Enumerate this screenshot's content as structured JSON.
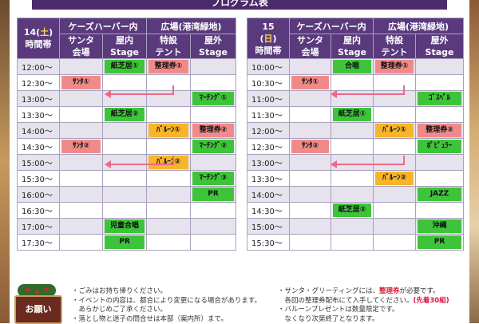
{
  "page": {
    "title": "プログラム表"
  },
  "headers": {
    "group_cases": "ケーズハーバー内",
    "group_plaza": "広場(港湾緑地)",
    "cols": [
      "サンタ会場",
      "屋内Stage",
      "特設テント",
      "屋外Stage"
    ],
    "col_lines": [
      [
        "サンタ",
        "会場"
      ],
      [
        "屋内",
        "Stage"
      ],
      [
        "特設",
        "テント"
      ],
      [
        "屋外",
        "Stage"
      ]
    ]
  },
  "day14": {
    "day_num": "14",
    "day_open": "(",
    "day_wd": "土",
    "day_close": ")",
    "label": "時間帯",
    "times": [
      "12:00～",
      "12:30～",
      "13:00～",
      "13:30～",
      "14:00～",
      "14:30～",
      "15:00～",
      "15:30～",
      "16:00～",
      "16:30～",
      "17:00～",
      "17:30～"
    ],
    "events": {
      "r0c1": "紙芝居①",
      "r0c2": "整理券①",
      "r1c0": "ｻﾝﾀ①",
      "r2c3": "ﾏｰﾁﾝｸﾞ①",
      "r3c1": "紙芝居②",
      "r4c2": "ﾊﾞﾙｰﾝ①",
      "r4c3": "整理券②",
      "r5c0": "ｻﾝﾀ②",
      "r5c3": "ﾏｰﾁﾝｸﾞ②",
      "r6c2": "ﾊﾞﾙｰﾝ②",
      "r7c3": "ﾏｰﾁﾝｸﾞ③",
      "r8c3": "PR",
      "r10c1": "児童合唱",
      "r11c1": "PR"
    }
  },
  "day15": {
    "day_num": "15",
    "day_open": "(",
    "day_wd": "日",
    "day_close": ")",
    "label": "時間帯",
    "times": [
      "10:00～",
      "10:30～",
      "11:00～",
      "11:30～",
      "12:00～",
      "12:30～",
      "13:00～",
      "13:30～",
      "14:00～",
      "14:30～",
      "15:00～",
      "15:30～"
    ],
    "events": {
      "r0c1": "合唱",
      "r0c2": "整理券①",
      "r1c0": "ｻﾝﾀ①",
      "r2c3": "ｺﾞｽﾍﾟﾙ",
      "r3c1": "紙芝居①",
      "r4c2": "ﾊﾞﾙｰﾝ①",
      "r4c3": "整理券②",
      "r5c0": "ｻﾝﾀ②",
      "r5c3": "ﾎﾟﾋﾟｭﾗｰ",
      "r7c2": "ﾊﾞﾙｰﾝ②",
      "r8c3": "JAZZ",
      "r9c1": "紙芝居②",
      "r10c3": "沖縄",
      "r11c3": "PR"
    }
  },
  "colors": {
    "header_purple": "#5a3a7c",
    "green": "#3ec43a",
    "red": "#f08a8a",
    "orange": "#f7b52c",
    "warn": "#d61a3c"
  },
  "notes": {
    "label": "お願い",
    "left": [
      "・ごみはお持ち帰りください。",
      "・イベントの内容は、都合により変更になる場合があります。",
      "　あらかじめご了承ください。",
      "・落とし物と迷子の問合せは本部（案内所）まで。"
    ],
    "right_1a": "・サンタ・グリーティングには、",
    "right_1b": "整理券",
    "right_1c": "が必要です。",
    "right_2a": "　各回の整理券配布にて入手してください。",
    "right_2b": "(先着30組)",
    "right_3": "・バルーンプレゼントは数量限定です。",
    "right_4": "　なくなり次第終了となります。"
  }
}
